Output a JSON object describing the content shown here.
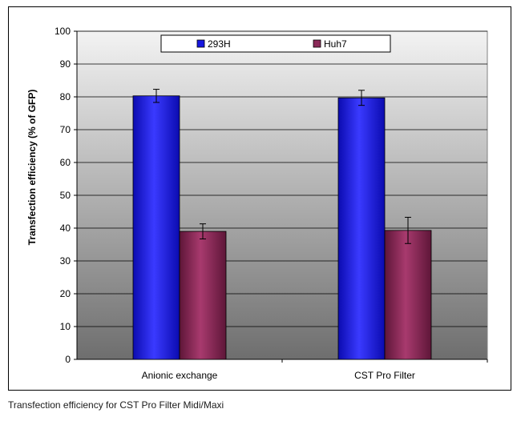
{
  "caption": "Transfection efficiency for CST Pro Filter Midi/Maxi",
  "chart_data": {
    "type": "bar",
    "title": "",
    "xlabel": "",
    "ylabel": "Transfection efficiency (% of GFP)",
    "categories": [
      "Anionic exchange",
      "CST Pro Filter"
    ],
    "series": [
      {
        "name": "293H",
        "values": [
          80.3,
          79.7
        ],
        "errors": [
          2.0,
          2.3
        ],
        "color": "#1717e0"
      },
      {
        "name": "Huh7",
        "values": [
          39.0,
          39.3
        ],
        "errors": [
          2.3,
          4.0
        ],
        "color": "#8b2a58"
      }
    ],
    "ylim": [
      0,
      100
    ],
    "yticks": [
      0,
      10,
      20,
      30,
      40,
      50,
      60,
      70,
      80,
      90,
      100
    ],
    "grid": true,
    "legend": "top-center",
    "plot_background": "gradient gray"
  }
}
